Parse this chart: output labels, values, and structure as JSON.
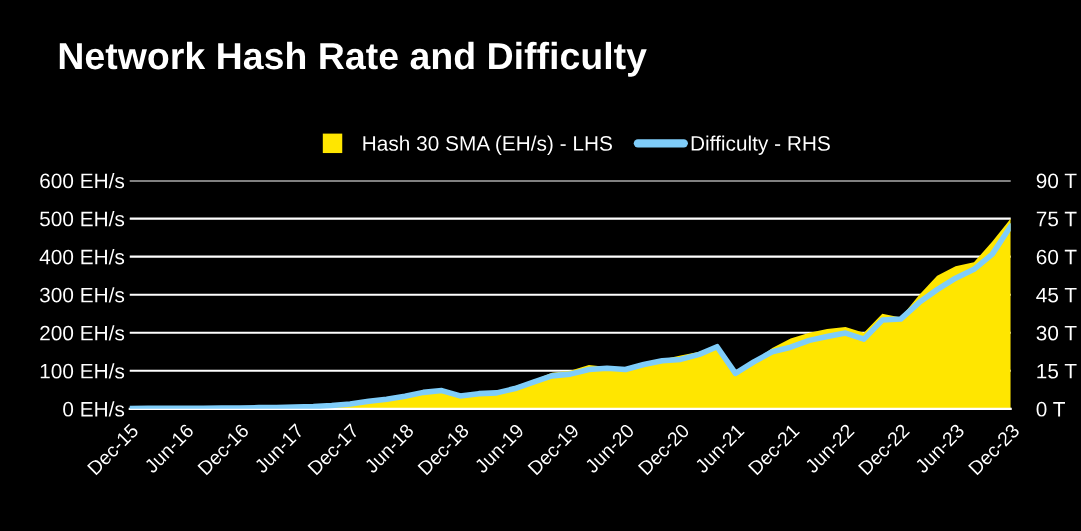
{
  "chart_data": {
    "type": "area",
    "title": "Network Hash Rate and Difficulty",
    "x": [
      "2015-12",
      "2016-02",
      "2016-04",
      "2016-06",
      "2016-08",
      "2016-10",
      "2016-12",
      "2017-02",
      "2017-04",
      "2017-06",
      "2017-08",
      "2017-10",
      "2017-12",
      "2018-02",
      "2018-04",
      "2018-06",
      "2018-08",
      "2018-10",
      "2018-12",
      "2019-02",
      "2019-04",
      "2019-06",
      "2019-08",
      "2019-10",
      "2019-12",
      "2020-02",
      "2020-04",
      "2020-06",
      "2020-08",
      "2020-10",
      "2020-12",
      "2021-02",
      "2021-04",
      "2021-06",
      "2021-08",
      "2021-10",
      "2021-12",
      "2022-02",
      "2022-04",
      "2022-06",
      "2022-08",
      "2022-10",
      "2022-12",
      "2023-02",
      "2023-04",
      "2023-06",
      "2023-08",
      "2023-10",
      "2023-12"
    ],
    "series": [
      {
        "name": "Hash 30 SMA (EH/s) - LHS",
        "color": "#ffe600",
        "values": [
          1,
          1,
          1,
          2,
          2,
          2,
          2,
          3,
          4,
          6,
          7,
          10,
          15,
          22,
          28,
          36,
          48,
          52,
          38,
          42,
          45,
          60,
          75,
          95,
          100,
          115,
          110,
          100,
          120,
          130,
          140,
          150,
          165,
          95,
          125,
          160,
          185,
          200,
          210,
          215,
          200,
          250,
          240,
          300,
          350,
          375,
          385,
          440,
          500
        ]
      },
      {
        "name": "Difficulty - RHS",
        "type": "line",
        "axis": "y2",
        "color": "#7fcdfa",
        "values": [
          0.1,
          0.2,
          0.2,
          0.2,
          0.2,
          0.3,
          0.3,
          0.5,
          0.5,
          0.7,
          0.9,
          1.3,
          1.9,
          3.0,
          3.8,
          5.0,
          6.5,
          7.2,
          5.1,
          6.0,
          6.3,
          8.0,
          10.5,
          13.0,
          13.7,
          15.5,
          16.0,
          15.5,
          17.5,
          19.0,
          19.5,
          21.5,
          24.5,
          14.0,
          18.5,
          22.5,
          24.3,
          27.0,
          28.5,
          29.9,
          27.5,
          35.0,
          35.4,
          42.0,
          47.0,
          51.5,
          55.0,
          61.0,
          72.0
        ]
      }
    ],
    "xlim": [
      "2015-12",
      "2023-12"
    ],
    "xticks": [
      {
        "value": "2015-12",
        "label": "Dec-15"
      },
      {
        "value": "2016-06",
        "label": "Jun-16"
      },
      {
        "value": "2016-12",
        "label": "Dec-16"
      },
      {
        "value": "2017-06",
        "label": "Jun-17"
      },
      {
        "value": "2017-12",
        "label": "Dec-17"
      },
      {
        "value": "2018-06",
        "label": "Jun-18"
      },
      {
        "value": "2018-12",
        "label": "Dec-18"
      },
      {
        "value": "2019-06",
        "label": "Jun-19"
      },
      {
        "value": "2019-12",
        "label": "Dec-19"
      },
      {
        "value": "2020-06",
        "label": "Jun-20"
      },
      {
        "value": "2020-12",
        "label": "Dec-20"
      },
      {
        "value": "2021-06",
        "label": "Jun-21"
      },
      {
        "value": "2021-12",
        "label": "Dec-21"
      },
      {
        "value": "2022-06",
        "label": "Jun-22"
      },
      {
        "value": "2022-12",
        "label": "Dec-22"
      },
      {
        "value": "2023-06",
        "label": "Jun-23"
      },
      {
        "value": "2023-12",
        "label": "Dec-23"
      }
    ],
    "ylim": [
      0,
      600
    ],
    "yticks": [
      {
        "value": 0,
        "label": "0 EH/s"
      },
      {
        "value": 100,
        "label": "100 EH/s"
      },
      {
        "value": 200,
        "label": "200 EH/s"
      },
      {
        "value": 300,
        "label": "300 EH/s"
      },
      {
        "value": 400,
        "label": "400 EH/s"
      },
      {
        "value": 500,
        "label": "500 EH/s"
      },
      {
        "value": 600,
        "label": "600 EH/s"
      }
    ],
    "y2lim": [
      0,
      90
    ],
    "y2ticks": [
      {
        "value": 0,
        "label": "0 T"
      },
      {
        "value": 15,
        "label": "15 T"
      },
      {
        "value": 30,
        "label": "30 T"
      },
      {
        "value": 45,
        "label": "45 T"
      },
      {
        "value": 60,
        "label": "60 T"
      },
      {
        "value": 75,
        "label": "75 T"
      },
      {
        "value": 90,
        "label": "90 T"
      }
    ],
    "grid": "y",
    "legend": "top"
  }
}
